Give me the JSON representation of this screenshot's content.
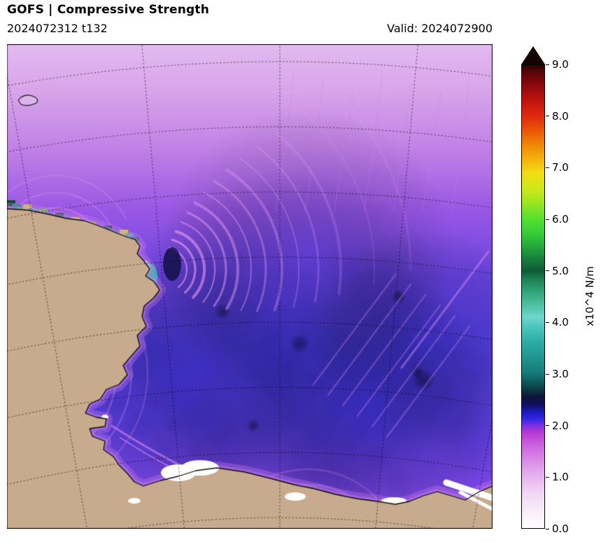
{
  "header": {
    "title": "GOFS  |  Compressive Strength",
    "run_label": "2024072312 t132",
    "valid_label": "Valid: 2024072900"
  },
  "colorbar": {
    "unit": "x10^4 N/m",
    "min": 0,
    "max": 9,
    "arrow_color": "#150202",
    "ticks": [
      {
        "value": 9,
        "label": "9.0"
      },
      {
        "value": 8,
        "label": "8.0"
      },
      {
        "value": 7,
        "label": "7.0"
      },
      {
        "value": 6,
        "label": "6.0"
      },
      {
        "value": 5,
        "label": "5.0"
      },
      {
        "value": 4,
        "label": "4.0"
      },
      {
        "value": 3,
        "label": "3.0"
      },
      {
        "value": 2,
        "label": "2.0"
      },
      {
        "value": 1,
        "label": "1.0"
      },
      {
        "value": 0,
        "label": "0.0"
      }
    ],
    "stops": [
      {
        "v": 0.0,
        "c": "#ffffff"
      },
      {
        "v": 0.35,
        "c": "#f8ecf9"
      },
      {
        "v": 0.7,
        "c": "#f0d4f3"
      },
      {
        "v": 1.0,
        "c": "#e6b3ee"
      },
      {
        "v": 1.3,
        "c": "#da8fe8"
      },
      {
        "v": 1.6,
        "c": "#cc63df"
      },
      {
        "v": 1.85,
        "c": "#b93bd4"
      },
      {
        "v": 2.0,
        "c": "#7a2fe2"
      },
      {
        "v": 2.1,
        "c": "#3a28ea"
      },
      {
        "v": 2.25,
        "c": "#1b1bbf"
      },
      {
        "v": 2.4,
        "c": "#10105e"
      },
      {
        "v": 2.55,
        "c": "#0d1338"
      },
      {
        "v": 2.7,
        "c": "#0c3c46"
      },
      {
        "v": 2.85,
        "c": "#0f5a5e"
      },
      {
        "v": 3.0,
        "c": "#177878"
      },
      {
        "v": 3.3,
        "c": "#1f948e"
      },
      {
        "v": 3.6,
        "c": "#2aaba4"
      },
      {
        "v": 3.9,
        "c": "#49c4bc"
      },
      {
        "v": 4.1,
        "c": "#6fd6cc"
      },
      {
        "v": 4.35,
        "c": "#4dbfa0"
      },
      {
        "v": 4.6,
        "c": "#2fa378"
      },
      {
        "v": 4.85,
        "c": "#1b7f50"
      },
      {
        "v": 5.0,
        "c": "#0e5a36"
      },
      {
        "v": 5.2,
        "c": "#177a3a"
      },
      {
        "v": 5.45,
        "c": "#22a33c"
      },
      {
        "v": 5.7,
        "c": "#35c93a"
      },
      {
        "v": 6.0,
        "c": "#52df2e"
      },
      {
        "v": 6.3,
        "c": "#96e422"
      },
      {
        "v": 6.6,
        "c": "#cfe81a"
      },
      {
        "v": 6.9,
        "c": "#f2dd13"
      },
      {
        "v": 7.15,
        "c": "#f5b50d"
      },
      {
        "v": 7.45,
        "c": "#f18708"
      },
      {
        "v": 7.7,
        "c": "#ea5a06"
      },
      {
        "v": 8.0,
        "c": "#e02a0d"
      },
      {
        "v": 8.3,
        "c": "#c01410"
      },
      {
        "v": 8.6,
        "c": "#8f0a0d"
      },
      {
        "v": 8.85,
        "c": "#5c0608"
      },
      {
        "v": 9.0,
        "c": "#2e0203"
      }
    ]
  },
  "map": {
    "land_color": "#c8aa8c",
    "coast_color": "#0d0d0d",
    "grid_color": "rgba(0,0,0,0.65)",
    "fast_ice_color": "#ffffff",
    "wave_color": "#f3a5fa",
    "ocean_gradient": [
      {
        "at": 0.0,
        "c": "#e3baf0"
      },
      {
        "at": 0.1,
        "c": "#d8a4ea"
      },
      {
        "at": 0.22,
        "c": "#c080e6"
      },
      {
        "at": 0.34,
        "c": "#9a58e4"
      },
      {
        "at": 0.48,
        "c": "#6a44e2"
      },
      {
        "at": 0.62,
        "c": "#5440e0"
      },
      {
        "at": 0.78,
        "c": "#5b3fe0"
      },
      {
        "at": 0.9,
        "c": "#7444e0"
      },
      {
        "at": 1.0,
        "c": "#8a4cdf"
      }
    ]
  }
}
